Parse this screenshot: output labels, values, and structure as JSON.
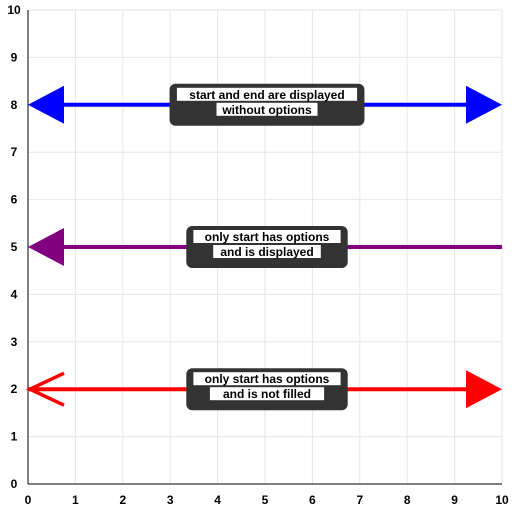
{
  "chart_data": {
    "type": "line",
    "title": "",
    "xlabel": "",
    "ylabel": "",
    "xlim": [
      0,
      10
    ],
    "ylim": [
      0,
      10
    ],
    "x_ticks": [
      0,
      1,
      2,
      3,
      4,
      5,
      6,
      7,
      8,
      9,
      10
    ],
    "y_ticks": [
      0,
      1,
      2,
      3,
      4,
      5,
      6,
      7,
      8,
      9,
      10
    ],
    "grid": true,
    "series": [
      {
        "color": "#0000ff",
        "x": [
          0,
          10
        ],
        "y": [
          8,
          8
        ],
        "start_arrow": "filled",
        "end_arrow": "filled",
        "label": [
          "start and end are displayed",
          "without options"
        ]
      },
      {
        "color": "#800080",
        "x": [
          0,
          10
        ],
        "y": [
          5,
          5
        ],
        "start_arrow": "filled",
        "end_arrow": "none",
        "label": [
          "only start has options",
          "and is displayed"
        ]
      },
      {
        "color": "#ff0000",
        "x": [
          0,
          10
        ],
        "y": [
          2,
          2
        ],
        "start_arrow": "open",
        "end_arrow": "filled",
        "label": [
          "only start has options",
          "and is not filled"
        ]
      }
    ]
  },
  "colors": {
    "grid": "#e6e6e6",
    "axis": "#000000",
    "label_background": "#333333",
    "label_text_background": "#ffffff"
  }
}
